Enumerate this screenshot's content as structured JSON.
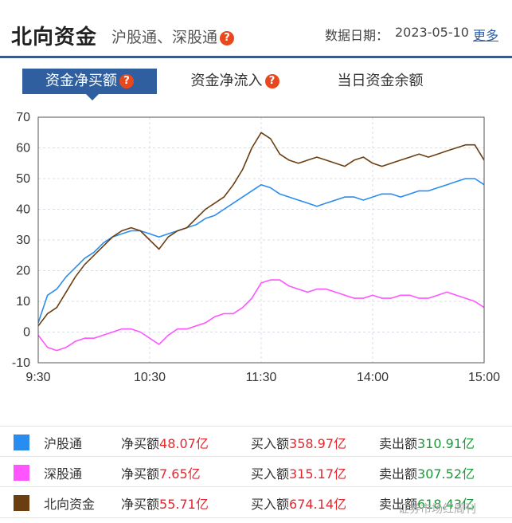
{
  "header": {
    "title": "北向资金",
    "subtitle": "沪股通、深股通",
    "date_label": "数据日期：",
    "date_value": "2023-05-10",
    "more_label": "更多",
    "help_glyph": "?"
  },
  "tabs": [
    {
      "label": "资金净买额",
      "active": true,
      "help": true
    },
    {
      "label": "资金净流入",
      "active": false,
      "help": true
    },
    {
      "label": "当日资金余额",
      "active": false,
      "help": false
    }
  ],
  "legend": [
    {
      "name": "沪股通",
      "color": "#2b8cf0",
      "net_label": "净买额",
      "net_value": "48.07亿",
      "buy_label": "买入额",
      "buy_value": "358.97亿",
      "sell_label": "卖出额",
      "sell_value": "310.91亿"
    },
    {
      "name": "深股通",
      "color": "#ff55ff",
      "net_label": "净买额",
      "net_value": "7.65亿",
      "buy_label": "买入额",
      "buy_value": "315.17亿",
      "sell_label": "卖出额",
      "sell_value": "307.52亿"
    },
    {
      "name": "北向资金",
      "color": "#6b3e12",
      "net_label": "净买额",
      "net_value": "55.71亿",
      "buy_label": "买入额",
      "buy_value": "674.14亿",
      "sell_label": "卖出额",
      "sell_value": "618.43亿"
    }
  ],
  "watermark": "证券市场红周刊",
  "chart_data": {
    "type": "line",
    "ylim": [
      -10,
      70
    ],
    "yticks": [
      -10,
      0,
      10,
      20,
      30,
      40,
      50,
      60,
      70
    ],
    "xticks": [
      "9:30",
      "10:30",
      "11:30",
      "14:00",
      "15:00"
    ],
    "x_minutes": [
      0,
      5,
      10,
      15,
      20,
      25,
      30,
      35,
      40,
      45,
      50,
      55,
      60,
      65,
      70,
      75,
      80,
      85,
      90,
      95,
      100,
      105,
      110,
      115,
      120,
      125,
      130,
      135,
      140,
      145,
      150,
      155,
      160,
      165,
      170,
      175,
      180,
      185,
      190,
      195,
      200,
      205,
      210,
      215,
      220,
      225,
      230,
      235,
      240
    ],
    "series": [
      {
        "name": "沪股通",
        "color": "#2b8cf0",
        "values": [
          3,
          12,
          14,
          18,
          21,
          24,
          26,
          29,
          31,
          32,
          33,
          33,
          32,
          31,
          32,
          33,
          34,
          35,
          37,
          38,
          40,
          42,
          44,
          46,
          48,
          47,
          45,
          44,
          43,
          42,
          41,
          42,
          43,
          44,
          44,
          43,
          44,
          45,
          45,
          44,
          45,
          46,
          46,
          47,
          48,
          49,
          50,
          50,
          48
        ]
      },
      {
        "name": "深股通",
        "color": "#ff55ff",
        "values": [
          -1,
          -5,
          -6,
          -5,
          -3,
          -2,
          -2,
          -1,
          0,
          1,
          1,
          0,
          -2,
          -4,
          -1,
          1,
          1,
          2,
          3,
          5,
          6,
          6,
          8,
          11,
          16,
          17,
          17,
          15,
          14,
          13,
          14,
          14,
          13,
          12,
          11,
          11,
          12,
          11,
          11,
          12,
          12,
          11,
          11,
          12,
          13,
          12,
          11,
          10,
          8
        ]
      },
      {
        "name": "北向资金",
        "color": "#6b3e12",
        "values": [
          2,
          6,
          8,
          13,
          18,
          22,
          25,
          28,
          31,
          33,
          34,
          33,
          30,
          27,
          31,
          33,
          34,
          37,
          40,
          42,
          44,
          48,
          53,
          60,
          65,
          63,
          58,
          56,
          55,
          56,
          57,
          56,
          55,
          54,
          56,
          57,
          55,
          54,
          55,
          56,
          57,
          58,
          57,
          58,
          59,
          60,
          61,
          61,
          56
        ]
      }
    ]
  }
}
